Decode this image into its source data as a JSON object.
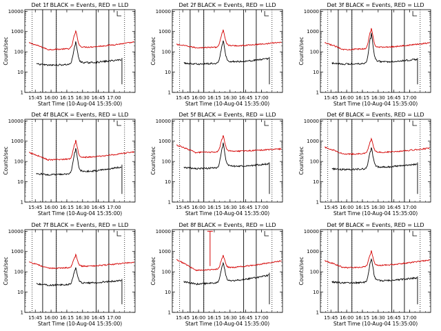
{
  "figure": {
    "ylabel": "Counts/sec",
    "xlabel": "Start Time (10-Aug-04 15:35:00)",
    "xticks": [
      "15:45",
      "16:00",
      "16:15",
      "16:30",
      "16:45",
      "17:00"
    ],
    "yticks": [
      "1",
      "10",
      "100",
      "1000",
      "10000"
    ],
    "colors": {
      "events": "#000000",
      "lld": "#d40000",
      "axis": "#000000"
    }
  },
  "chart_data": [
    {
      "type": "line",
      "title": "Det 1f BLACK = Events, RED = LLD",
      "series_names": [
        "Events",
        "LLD"
      ],
      "x_range_min_after_1535": [
        0,
        105
      ],
      "ylim": [
        1,
        12000
      ],
      "log_y": true,
      "key_points": {
        "lld_start": 300,
        "lld_min": 130,
        "lld_peak": 780,
        "lld_end": 300,
        "events_start": 28,
        "events_min": 22,
        "events_peak": 200,
        "events_end": 50
      },
      "events_plot_min": [
        11,
        92
      ],
      "lld_plot_min": [
        4,
        104
      ]
    },
    {
      "type": "line",
      "title": "Det 2f BLACK = Events, RED = LLD",
      "series_names": [
        "Events",
        "LLD"
      ],
      "x_range_min_after_1535": [
        0,
        105
      ],
      "ylim": [
        1,
        12000
      ],
      "log_y": true,
      "key_points": {
        "lld_start": 240,
        "lld_min": 160,
        "lld_peak": 900,
        "lld_end": 300,
        "events_start": 30,
        "events_min": 25,
        "events_peak": 230,
        "events_end": 55
      },
      "events_plot_min": [
        11,
        92
      ],
      "lld_plot_min": [
        4,
        104
      ]
    },
    {
      "type": "line",
      "title": "Det 3f BLACK = Events, RED = LLD",
      "series_names": [
        "Events",
        "LLD"
      ],
      "x_range_min_after_1535": [
        0,
        105
      ],
      "ylim": [
        1,
        12000
      ],
      "log_y": true,
      "key_points": {
        "lld_start": 300,
        "lld_min": 130,
        "lld_peak": 1000,
        "lld_end": 280,
        "events_start": 30,
        "events_min": 25,
        "events_peak": 500,
        "events_end": 50
      },
      "events_plot_min": [
        11,
        92
      ],
      "lld_plot_min": [
        4,
        104
      ]
    },
    {
      "type": "line",
      "title": "Det 4f BLACK = Events, RED = LLD",
      "series_names": [
        "Events",
        "LLD"
      ],
      "x_range_min_after_1535": [
        0,
        105
      ],
      "ylim": [
        1,
        12000
      ],
      "log_y": true,
      "key_points": {
        "lld_start": 300,
        "lld_min": 120,
        "lld_peak": 800,
        "lld_end": 300,
        "events_start": 28,
        "events_min": 22,
        "events_peak": 300,
        "events_end": 70
      },
      "events_plot_min": [
        11,
        92
      ],
      "lld_plot_min": [
        4,
        104
      ]
    },
    {
      "type": "line",
      "title": "Det 5f BLACK = Events, RED = LLD",
      "series_names": [
        "Events",
        "LLD"
      ],
      "x_range_min_after_1535": [
        0,
        105
      ],
      "ylim": [
        1,
        12000
      ],
      "log_y": true,
      "key_points": {
        "lld_start": 700,
        "lld_min": 280,
        "lld_peak": 1400,
        "lld_end": 420,
        "events_start": 55,
        "events_min": 45,
        "events_peak": 500,
        "events_end": 90
      },
      "events_plot_min": [
        11,
        92
      ],
      "lld_plot_min": [
        4,
        104
      ]
    },
    {
      "type": "line",
      "title": "Det 6f BLACK = Events, RED = LLD",
      "series_names": [
        "Events",
        "LLD"
      ],
      "x_range_min_after_1535": [
        0,
        105
      ],
      "ylim": [
        1,
        12000
      ],
      "log_y": true,
      "key_points": {
        "lld_start": 550,
        "lld_min": 230,
        "lld_peak": 1000,
        "lld_end": 450,
        "events_start": 45,
        "events_min": 40,
        "events_peak": 320,
        "events_end": 90
      },
      "events_plot_min": [
        11,
        92
      ],
      "lld_plot_min": [
        4,
        104
      ]
    },
    {
      "type": "line",
      "title": "Det 7f BLACK = Events, RED = LLD",
      "series_names": [
        "Events",
        "LLD"
      ],
      "x_range_min_after_1535": [
        0,
        105
      ],
      "ylim": [
        1,
        12000
      ],
      "log_y": true,
      "key_points": {
        "lld_start": 320,
        "lld_min": 150,
        "lld_peak": 550,
        "lld_end": 300,
        "events_start": 28,
        "events_min": 22,
        "events_peak": 120,
        "events_end": 45
      },
      "events_plot_min": [
        11,
        92
      ],
      "lld_plot_min": [
        4,
        104
      ]
    },
    {
      "type": "line",
      "title": "Det 8f BLACK = Events, RED = LLD",
      "series_names": [
        "Events",
        "LLD"
      ],
      "x_range_min_after_1535": [
        0,
        105
      ],
      "ylim": [
        1,
        12000
      ],
      "log_y": true,
      "key_points": {
        "lld_start": 450,
        "lld_min": 120,
        "lld_peak": 500,
        "lld_end": 350,
        "events_start": 40,
        "events_min": 25,
        "events_peak": 200,
        "events_end": 90,
        "lld_spike_at_min": 36,
        "lld_spike_value": 10000
      },
      "events_plot_min": [
        11,
        92
      ],
      "lld_plot_min": [
        4,
        104
      ]
    },
    {
      "type": "line",
      "title": "Det 9f BLACK = Events, RED = LLD",
      "series_names": [
        "Events",
        "LLD"
      ],
      "x_range_min_after_1535": [
        0,
        105
      ],
      "ylim": [
        1,
        12000
      ],
      "log_y": true,
      "key_points": {
        "lld_start": 380,
        "lld_min": 160,
        "lld_peak": 800,
        "lld_end": 380,
        "events_start": 35,
        "events_min": 28,
        "events_peak": 300,
        "events_end": 60
      },
      "events_plot_min": [
        11,
        92
      ],
      "lld_plot_min": [
        4,
        104
      ]
    }
  ]
}
